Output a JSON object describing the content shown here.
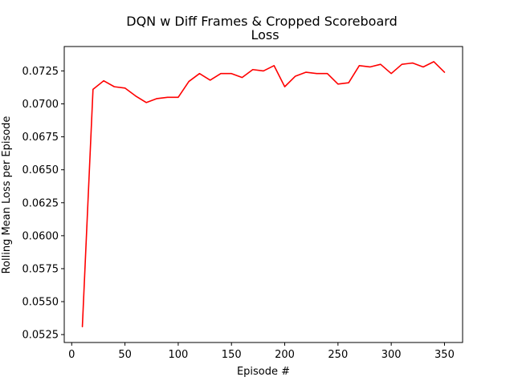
{
  "chart_data": {
    "type": "line",
    "title_line1": "DQN w Diff Frames & Cropped Scoreboard",
    "title_line2": "Loss",
    "xlabel": "Episode #",
    "ylabel": "Rolling Mean Loss per Episode",
    "xlim": [
      -7,
      367
    ],
    "ylim": [
      0.0519,
      0.07435
    ],
    "x_ticks": [
      0,
      50,
      100,
      150,
      200,
      250,
      300,
      350
    ],
    "y_ticks": [
      0.0525,
      0.055,
      0.0575,
      0.06,
      0.0625,
      0.065,
      0.0675,
      0.07,
      0.0725
    ],
    "x_tick_labels": [
      "0",
      "50",
      "100",
      "150",
      "200",
      "250",
      "300",
      "350"
    ],
    "y_tick_labels": [
      "0.0525",
      "0.0550",
      "0.0575",
      "0.0600",
      "0.0625",
      "0.0650",
      "0.0675",
      "0.0700",
      "0.0725"
    ],
    "grid": false,
    "series": [
      {
        "color": "#ff0000",
        "x": [
          10,
          20,
          30,
          40,
          50,
          60,
          70,
          80,
          90,
          100,
          110,
          120,
          130,
          140,
          150,
          160,
          170,
          180,
          190,
          200,
          210,
          220,
          230,
          240,
          250,
          260,
          270,
          280,
          290,
          300,
          310,
          320,
          330,
          340,
          350
        ],
        "y": [
          0.0531,
          0.0711,
          0.07175,
          0.0713,
          0.0712,
          0.0706,
          0.0701,
          0.0704,
          0.0705,
          0.0705,
          0.0717,
          0.0723,
          0.0718,
          0.0723,
          0.0723,
          0.072,
          0.0726,
          0.0725,
          0.0729,
          0.0713,
          0.0721,
          0.0724,
          0.0723,
          0.0723,
          0.0715,
          0.0716,
          0.0729,
          0.0728,
          0.073,
          0.0723,
          0.073,
          0.0731,
          0.0728,
          0.0732,
          0.0724
        ]
      }
    ]
  }
}
